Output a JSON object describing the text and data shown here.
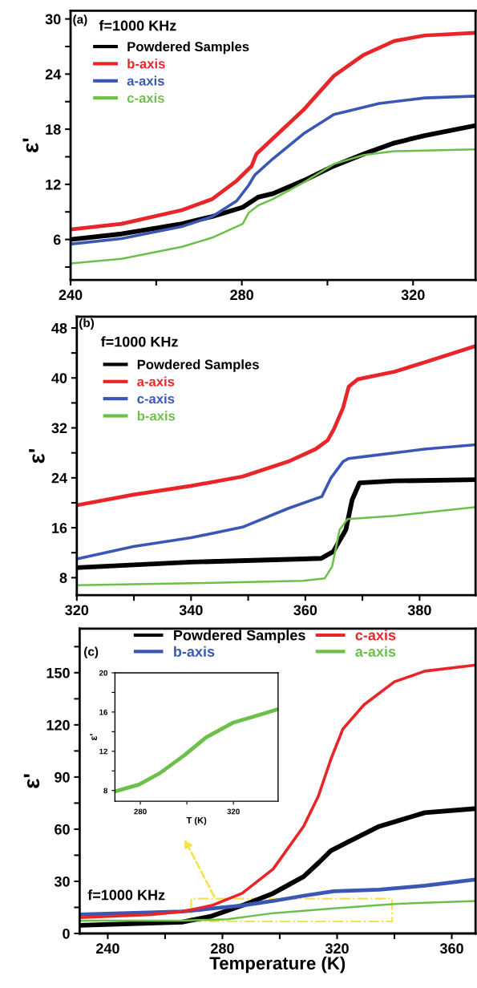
{
  "chart_data": [
    {
      "type": "line",
      "annotations": [
        "(a)",
        "f=1000 KHz"
      ],
      "ylabel": "ε'",
      "legend": "top left",
      "grid": false,
      "xlim": [
        240,
        334.6
      ],
      "ylim": [
        1.6,
        30.9
      ],
      "xticks": [
        240,
        {
          "value": 260,
          "label": null
        },
        280,
        {
          "value": 300,
          "label": null
        },
        320
      ],
      "yticks": [
        {
          "value": 3,
          "label": null
        },
        6,
        {
          "value": 9,
          "label": null
        },
        12,
        {
          "value": 15,
          "label": null
        },
        18,
        {
          "value": 21,
          "label": null
        },
        24,
        {
          "value": 27,
          "label": null
        },
        30
      ],
      "series": [
        {
          "name": "Powdered Samples",
          "color": "#000000",
          "x": [
            240,
            251.9,
            266,
            273.1,
            280.2,
            283.8,
            287.3,
            294.4,
            301.5,
            308.5,
            315.6,
            322.7,
            334.6
          ],
          "values": [
            6.0,
            6.6,
            7.7,
            8.5,
            9.5,
            10.6,
            11.0,
            12.4,
            14.0,
            15.3,
            16.5,
            17.3,
            18.4
          ]
        },
        {
          "name": "b-axis",
          "color": "#e8262a",
          "x": [
            240,
            251.9,
            266,
            273.1,
            278.8,
            282.3,
            283.4,
            287.3,
            294.4,
            301.5,
            308.5,
            315.6,
            322.7,
            334.6
          ],
          "values": [
            7.1,
            7.7,
            9.2,
            10.4,
            12.4,
            14.0,
            15.3,
            17.0,
            20.1,
            23.8,
            26.1,
            27.6,
            28.2,
            28.5
          ]
        },
        {
          "name": "a-axis",
          "color": "#3b57b5",
          "x": [
            240,
            251.9,
            266,
            273.1,
            278.8,
            281.6,
            283,
            287.3,
            294.4,
            301.5,
            305,
            312.1,
            322.7,
            334.6
          ],
          "values": [
            5.5,
            6.1,
            7.4,
            8.5,
            10.2,
            11.9,
            13.0,
            14.8,
            17.5,
            19.6,
            20.0,
            20.8,
            21.4,
            21.6
          ]
        },
        {
          "name": "c-axis",
          "color": "#6cc04a",
          "x": [
            240,
            251.9,
            266,
            273.1,
            280.2,
            281.6,
            283.8,
            287.3,
            294.4,
            301.5,
            308.5,
            315.6,
            334.6
          ],
          "values": [
            3.4,
            3.9,
            5.2,
            6.2,
            7.7,
            8.9,
            9.7,
            10.4,
            12.2,
            14.2,
            15.2,
            15.6,
            15.8
          ]
        }
      ]
    },
    {
      "type": "line",
      "annotations": [
        "(b)",
        "f=1000 KHz"
      ],
      "ylabel": "ε'",
      "legend": "top left",
      "grid": false,
      "xlim": [
        320,
        389.8
      ],
      "ylim": [
        5.2,
        49.8
      ],
      "xticks": [
        320,
        {
          "value": 330,
          "label": null
        },
        340,
        {
          "value": 350,
          "label": null
        },
        360,
        {
          "value": 370,
          "label": null
        },
        380
      ],
      "yticks": [
        8,
        {
          "value": 12,
          "label": null
        },
        16,
        {
          "value": 20,
          "label": null
        },
        24,
        {
          "value": 28,
          "label": null
        },
        32,
        {
          "value": 36,
          "label": null
        },
        40,
        {
          "value": 44,
          "label": null
        },
        48
      ],
      "series": [
        {
          "name": "Powdered Samples",
          "color": "#000000",
          "x": [
            320,
            340,
            359.6,
            362.8,
            364.9,
            367.1,
            368.2,
            369.5,
            375.6,
            389.8
          ],
          "values": [
            9.6,
            10.5,
            11.0,
            11.1,
            12.2,
            15.7,
            20.5,
            23.2,
            23.5,
            23.7
          ]
        },
        {
          "name": "a-axis",
          "color": "#e8262a",
          "x": [
            320,
            329.9,
            340,
            349,
            357,
            361.8,
            363.9,
            365,
            366.6,
            367.6,
            369.2,
            375.6,
            380.9,
            389.8
          ],
          "values": [
            19.6,
            21.3,
            22.7,
            24.2,
            26.6,
            28.6,
            30.0,
            31.8,
            35.2,
            38.6,
            39.8,
            41.0,
            42.5,
            45.1
          ]
        },
        {
          "name": "c-axis",
          "color": "#3b57b5",
          "x": [
            320,
            329.9,
            340,
            349,
            357,
            362.9,
            364.5,
            366.6,
            367.6,
            370.3,
            380.9,
            389.8
          ],
          "values": [
            11.0,
            13.0,
            14.4,
            16.1,
            19.1,
            21.0,
            24.0,
            26.6,
            27.1,
            27.4,
            28.6,
            29.3
          ]
        },
        {
          "name": "b-axis",
          "color": "#6cc04a",
          "x": [
            320,
            340,
            359.6,
            363.4,
            364.7,
            366,
            367.4,
            375.6,
            389.8
          ],
          "values": [
            6.8,
            7.1,
            7.5,
            7.9,
            9.8,
            15.7,
            17.4,
            17.9,
            19.3
          ]
        }
      ]
    },
    {
      "type": "line",
      "annotations": [
        "(c)",
        "f=1000 KHz"
      ],
      "ylabel": "ε'",
      "xlabel": "Temperature (K)",
      "legend": "top",
      "grid": false,
      "xlim": [
        230.2,
        368.3
      ],
      "ylim": [
        0,
        175.4
      ],
      "xticks": [
        240,
        {
          "value": 260,
          "label": null
        },
        280,
        {
          "value": 300,
          "label": null
        },
        320,
        {
          "value": 340,
          "label": null
        },
        360
      ],
      "yticks": [
        0,
        {
          "value": 15,
          "label": null
        },
        30,
        {
          "value": 45,
          "label": null
        },
        60,
        {
          "value": 75,
          "label": null
        },
        90,
        {
          "value": 105,
          "label": null
        },
        120,
        {
          "value": 135,
          "label": null
        },
        150,
        {
          "value": 165,
          "label": null
        }
      ],
      "series": [
        {
          "name": "Powdered Samples",
          "color": "#000000",
          "x": [
            230.2,
            265.9,
            276.3,
            286.9,
            297.7,
            308.3,
            313.5,
            317.8,
            324.1,
            334.7,
            350.6,
            368.3
          ],
          "values": [
            4.7,
            6.5,
            10.0,
            16.1,
            23.1,
            32.7,
            40.6,
            47.6,
            52.9,
            61.6,
            69.5,
            71.8
          ]
        },
        {
          "name": "b-axis",
          "color": "#3b57b5",
          "x": [
            230.2,
            265.9,
            286.9,
            297.7,
            308.3,
            318.8,
            334.7,
            350.6,
            368.3
          ],
          "values": [
            10.9,
            12.6,
            16.1,
            18.7,
            21.7,
            24.3,
            25.2,
            27.5,
            31.0
          ]
        },
        {
          "name": "c-axis",
          "color": "#e8262a",
          "x": [
            230.2,
            255.3,
            265.9,
            276.3,
            286.9,
            297.7,
            308.3,
            313.5,
            317.8,
            322,
            329.4,
            340,
            350.6,
            368.3
          ],
          "values": [
            9.1,
            10.9,
            12.6,
            16.1,
            23.1,
            37.1,
            61.6,
            79.1,
            100.1,
            117.6,
            131.6,
            144.8,
            150.9,
            154.4
          ]
        },
        {
          "name": "a-axis",
          "color": "#6cc04a",
          "x": [
            230.2,
            265.9,
            281.8,
            297.7,
            318.8,
            340,
            368.3
          ],
          "values": [
            7.4,
            7.4,
            8.2,
            11.7,
            14.4,
            17.0,
            18.7
          ]
        }
      ]
    },
    {
      "type": "line",
      "xlabel": "T (K)",
      "ylabel": "ε'",
      "grid": false,
      "xlim": [
        269.1,
        339.2
      ],
      "ylim": [
        6.9,
        20
      ],
      "xticks": [
        280,
        {
          "value": 300,
          "label": null
        },
        320
      ],
      "yticks": [
        8,
        {
          "value": 10,
          "label": null
        },
        12,
        {
          "value": 14,
          "label": null
        },
        16,
        {
          "value": 18,
          "label": null
        },
        20
      ],
      "series": [
        {
          "color": "#6cc04a",
          "x": [
            269.1,
            279.4,
            288.6,
            299,
            308.2,
            319.7,
            331.1,
            339.2
          ],
          "values": [
            7.9,
            8.6,
            9.8,
            11.6,
            13.4,
            14.9,
            15.7,
            16.3
          ]
        }
      ]
    }
  ]
}
